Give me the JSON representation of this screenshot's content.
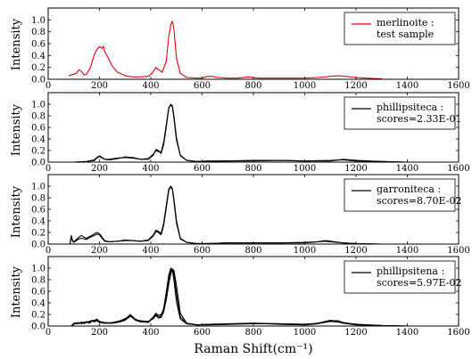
{
  "chart_data": [
    {
      "type": "line",
      "ylabel": "Intensity",
      "xlim": [
        0,
        1600
      ],
      "ylim": [
        0,
        1.2
      ],
      "xticks": [
        "0",
        "200",
        "400",
        "600",
        "800",
        "1000",
        "1200",
        "1400",
        "1600"
      ],
      "yticks": [
        "0.0",
        "0.2",
        "0.4",
        "0.6",
        "0.8",
        "1.0"
      ],
      "legend": {
        "placement": "top-right",
        "lines": [
          "merlinoite :",
          "test sample"
        ]
      },
      "series": [
        {
          "color": "#e8000b",
          "x": [
            80,
            95,
            110,
            120,
            130,
            140,
            150,
            165,
            180,
            190,
            200,
            210,
            215,
            220,
            235,
            250,
            270,
            300,
            330,
            360,
            390,
            405,
            420,
            430,
            445,
            460,
            470,
            478,
            484,
            490,
            500,
            515,
            540,
            580,
            600,
            620,
            640,
            660,
            700,
            740,
            780,
            820,
            860,
            900,
            950,
            1000,
            1050,
            1100,
            1130,
            1160,
            1200,
            1240,
            1280,
            1300
          ],
          "y": [
            0.06,
            0.08,
            0.1,
            0.16,
            0.13,
            0.07,
            0.09,
            0.2,
            0.42,
            0.5,
            0.55,
            0.52,
            0.56,
            0.47,
            0.35,
            0.22,
            0.12,
            0.06,
            0.04,
            0.04,
            0.05,
            0.1,
            0.2,
            0.16,
            0.12,
            0.3,
            0.72,
            0.92,
            0.98,
            0.85,
            0.35,
            0.1,
            0.03,
            0.02,
            0.02,
            0.05,
            0.05,
            0.03,
            0.02,
            0.02,
            0.04,
            0.02,
            0.02,
            0.02,
            0.02,
            0.02,
            0.03,
            0.05,
            0.06,
            0.05,
            0.03,
            0.02,
            0.01,
            0.01
          ]
        }
      ]
    },
    {
      "type": "line",
      "ylabel": "Intensity",
      "xlim": [
        0,
        1600
      ],
      "ylim": [
        0,
        1.2
      ],
      "xticks": [
        "0",
        "200",
        "400",
        "600",
        "800",
        "1000",
        "1200",
        "1400",
        "1600"
      ],
      "yticks": [
        "0.0",
        "0.2",
        "0.4",
        "0.6",
        "0.8",
        "1.0"
      ],
      "legend": {
        "placement": "top-right",
        "lines": [
          "phillipsiteca :",
          "scores=2.33E-01"
        ]
      },
      "series": [
        {
          "color": "#000000",
          "x": [
            100,
            150,
            180,
            190,
            200,
            210,
            220,
            240,
            270,
            300,
            330,
            360,
            390,
            410,
            420,
            430,
            440,
            450,
            460,
            470,
            478,
            484,
            490,
            500,
            515,
            540,
            580,
            620,
            700,
            800,
            900,
            1000,
            1100,
            1150,
            1200,
            1300,
            1400,
            1500
          ],
          "y": [
            0.0,
            0.01,
            0.04,
            0.08,
            0.11,
            0.08,
            0.05,
            0.04,
            0.06,
            0.09,
            0.08,
            0.05,
            0.05,
            0.12,
            0.22,
            0.2,
            0.15,
            0.3,
            0.6,
            0.92,
            1.0,
            0.97,
            0.8,
            0.42,
            0.12,
            0.03,
            0.01,
            0.01,
            0.02,
            0.03,
            0.03,
            0.02,
            0.02,
            0.05,
            0.03,
            0.01,
            0.0,
            0.0
          ]
        },
        {
          "color": "#000000",
          "x": [
            100,
            150,
            180,
            190,
            200,
            210,
            220,
            240,
            270,
            300,
            330,
            360,
            390,
            410,
            420,
            430,
            440,
            450,
            460,
            470,
            478,
            484,
            490,
            500,
            515,
            540,
            580,
            620,
            700,
            800,
            900,
            1000,
            1100,
            1150,
            1200,
            1300,
            1400,
            1500
          ],
          "y": [
            0.0,
            0.01,
            0.03,
            0.07,
            0.1,
            0.07,
            0.05,
            0.05,
            0.07,
            0.08,
            0.07,
            0.05,
            0.06,
            0.14,
            0.2,
            0.18,
            0.17,
            0.34,
            0.64,
            0.94,
            0.99,
            0.95,
            0.76,
            0.38,
            0.11,
            0.03,
            0.01,
            0.02,
            0.02,
            0.02,
            0.03,
            0.02,
            0.03,
            0.04,
            0.02,
            0.01,
            0.0,
            0.0
          ]
        }
      ]
    },
    {
      "type": "line",
      "ylabel": "Intensity",
      "xlim": [
        0,
        1600
      ],
      "ylim": [
        0,
        1.2
      ],
      "xticks": [
        "0",
        "200",
        "400",
        "600",
        "800",
        "1000",
        "1200",
        "1400",
        "1600"
      ],
      "yticks": [
        "0.0",
        "0.2",
        "0.4",
        "0.6",
        "0.8",
        "1.0"
      ],
      "legend": {
        "placement": "top-right",
        "lines": [
          "garroniteca :",
          "scores=8.70E-02"
        ]
      },
      "series": [
        {
          "color": "#000000",
          "x": [
            85,
            90,
            95,
            100,
            110,
            120,
            130,
            140,
            150,
            160,
            170,
            180,
            190,
            200,
            210,
            220,
            240,
            270,
            300,
            330,
            360,
            390,
            410,
            420,
            430,
            440,
            450,
            460,
            470,
            478,
            484,
            490,
            500,
            515,
            540,
            580,
            620,
            700,
            800,
            900,
            1000,
            1050,
            1080,
            1100,
            1150,
            1200,
            1300,
            1400,
            1500
          ],
          "y": [
            0.0,
            0.15,
            0.06,
            0.04,
            0.08,
            0.12,
            0.15,
            0.12,
            0.1,
            0.13,
            0.15,
            0.18,
            0.2,
            0.18,
            0.12,
            0.06,
            0.04,
            0.05,
            0.07,
            0.06,
            0.05,
            0.06,
            0.14,
            0.22,
            0.2,
            0.16,
            0.32,
            0.62,
            0.92,
            1.0,
            0.96,
            0.78,
            0.4,
            0.1,
            0.03,
            0.01,
            0.01,
            0.02,
            0.02,
            0.02,
            0.02,
            0.04,
            0.06,
            0.05,
            0.02,
            0.01,
            0.0,
            0.0,
            0.0
          ]
        },
        {
          "color": "#000000",
          "x": [
            85,
            90,
            95,
            100,
            110,
            120,
            130,
            140,
            150,
            160,
            170,
            180,
            190,
            200,
            210,
            220,
            240,
            270,
            300,
            330,
            360,
            390,
            410,
            420,
            430,
            440,
            450,
            460,
            470,
            478,
            484,
            490,
            500,
            515,
            540,
            580,
            620,
            700,
            800,
            900,
            1000,
            1050,
            1080,
            1100,
            1150,
            1200,
            1300,
            1400,
            1500
          ],
          "y": [
            0.0,
            0.12,
            0.05,
            0.03,
            0.06,
            0.09,
            0.1,
            0.09,
            0.08,
            0.11,
            0.13,
            0.15,
            0.17,
            0.16,
            0.1,
            0.05,
            0.04,
            0.05,
            0.06,
            0.06,
            0.05,
            0.07,
            0.16,
            0.24,
            0.22,
            0.18,
            0.36,
            0.66,
            0.95,
            1.0,
            0.94,
            0.74,
            0.36,
            0.09,
            0.03,
            0.01,
            0.01,
            0.02,
            0.02,
            0.02,
            0.03,
            0.04,
            0.05,
            0.04,
            0.02,
            0.01,
            0.0,
            0.0,
            0.0
          ]
        }
      ]
    },
    {
      "type": "line",
      "xlabel": "Raman Shift(cm⁻¹)",
      "ylabel": "Intensity",
      "xlim": [
        0,
        1600
      ],
      "ylim": [
        0,
        1.2
      ],
      "xticks": [
        "0",
        "200",
        "400",
        "600",
        "800",
        "1000",
        "1200",
        "1400",
        "1600"
      ],
      "yticks": [
        "0.0",
        "0.2",
        "0.4",
        "0.6",
        "0.8",
        "1.0"
      ],
      "legend": {
        "placement": "top-right",
        "lines": [
          "phillipsitena :",
          "scores=5.97E-02"
        ]
      },
      "series": [
        {
          "color": "#000000",
          "x": [
            90,
            100,
            110,
            120,
            130,
            140,
            150,
            160,
            170,
            180,
            190,
            200,
            220,
            250,
            280,
            300,
            320,
            330,
            340,
            360,
            390,
            410,
            420,
            430,
            440,
            450,
            460,
            470,
            478,
            484,
            490,
            500,
            515,
            540,
            580,
            620,
            700,
            800,
            900,
            1000,
            1050,
            1100,
            1130,
            1150,
            1200,
            1300,
            1400,
            1500
          ],
          "y": [
            0.0,
            0.04,
            0.06,
            0.04,
            0.07,
            0.05,
            0.08,
            0.06,
            0.1,
            0.09,
            0.12,
            0.08,
            0.06,
            0.05,
            0.08,
            0.12,
            0.2,
            0.15,
            0.12,
            0.08,
            0.06,
            0.14,
            0.2,
            0.15,
            0.17,
            0.3,
            0.58,
            0.88,
            1.0,
            0.96,
            0.8,
            0.42,
            0.12,
            0.04,
            0.02,
            0.03,
            0.04,
            0.05,
            0.04,
            0.03,
            0.05,
            0.1,
            0.08,
            0.05,
            0.03,
            0.01,
            0.0,
            0.0
          ]
        },
        {
          "color": "#000000",
          "x": [
            90,
            100,
            110,
            120,
            130,
            140,
            150,
            160,
            170,
            180,
            190,
            200,
            220,
            250,
            280,
            300,
            320,
            330,
            340,
            360,
            390,
            410,
            420,
            430,
            440,
            450,
            460,
            470,
            478,
            484,
            490,
            500,
            515,
            540,
            580,
            620,
            700,
            800,
            900,
            1000,
            1050,
            1100,
            1130,
            1150,
            1200,
            1300,
            1400,
            1500
          ],
          "y": [
            0.0,
            0.03,
            0.05,
            0.06,
            0.04,
            0.07,
            0.06,
            0.08,
            0.09,
            0.07,
            0.1,
            0.07,
            0.05,
            0.05,
            0.07,
            0.1,
            0.17,
            0.14,
            0.1,
            0.07,
            0.07,
            0.16,
            0.22,
            0.18,
            0.2,
            0.28,
            0.52,
            0.8,
            0.95,
            0.99,
            0.9,
            0.55,
            0.16,
            0.04,
            0.02,
            0.03,
            0.03,
            0.04,
            0.04,
            0.03,
            0.04,
            0.08,
            0.07,
            0.05,
            0.02,
            0.01,
            0.0,
            0.0
          ]
        },
        {
          "color": "#000000",
          "x": [
            90,
            100,
            110,
            120,
            130,
            140,
            150,
            160,
            170,
            180,
            190,
            200,
            220,
            250,
            280,
            300,
            320,
            330,
            340,
            360,
            390,
            410,
            420,
            430,
            440,
            450,
            460,
            470,
            478,
            484,
            490,
            500,
            515,
            540,
            580,
            620,
            700,
            800,
            900,
            1000,
            1050,
            1100,
            1130,
            1150,
            1200,
            1300,
            1400,
            1500
          ],
          "y": [
            0.0,
            0.05,
            0.04,
            0.05,
            0.06,
            0.04,
            0.07,
            0.05,
            0.08,
            0.1,
            0.09,
            0.06,
            0.05,
            0.06,
            0.09,
            0.13,
            0.18,
            0.16,
            0.11,
            0.09,
            0.08,
            0.13,
            0.18,
            0.14,
            0.15,
            0.24,
            0.45,
            0.72,
            0.9,
            0.98,
            0.96,
            0.7,
            0.22,
            0.05,
            0.02,
            0.02,
            0.03,
            0.05,
            0.03,
            0.02,
            0.04,
            0.09,
            0.09,
            0.06,
            0.03,
            0.01,
            0.0,
            0.0
          ]
        }
      ]
    }
  ]
}
